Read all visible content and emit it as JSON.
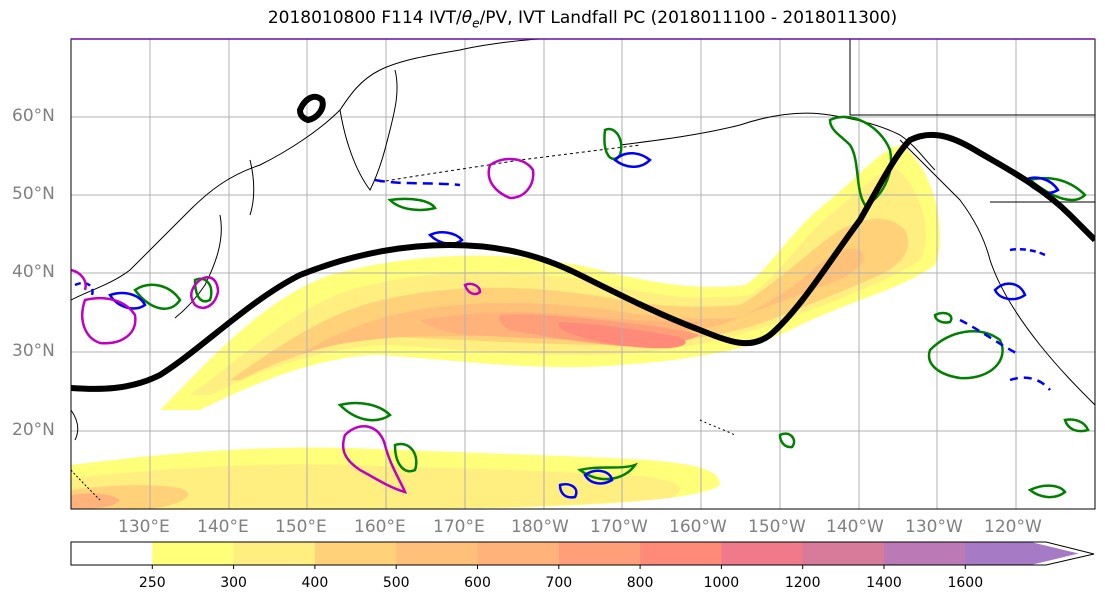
{
  "title": "2018010800 F114 IVT/θₑ/PV, IVT Landfall PC (2018011100 - 2018011300)",
  "title_parts": {
    "prefix": "2018010800 F114 IVT/",
    "theta": "θ",
    "theta_sub": "e",
    "suffix": "/PV, IVT Landfall PC (2018011100 - 2018011300)"
  },
  "lat_labels": [
    "60°N",
    "50°N",
    "40°N",
    "30°N",
    "20°N"
  ],
  "lon_labels": [
    "130°E",
    "140°E",
    "150°E",
    "160°E",
    "170°E",
    "180°W",
    "170°W",
    "160°W",
    "150°W",
    "140°W",
    "130°W",
    "120°W"
  ],
  "colorbar": {
    "ticks": [
      "250",
      "300",
      "400",
      "500",
      "600",
      "700",
      "800",
      "1000",
      "1200",
      "1400",
      "1600"
    ],
    "colors": [
      "#ffffff",
      "#ffff7a",
      "#ffee80",
      "#ffd27a",
      "#ffc07a",
      "#ffb37a",
      "#ff9f7a",
      "#ff8a7a",
      "#f07a8a",
      "#d87a9a",
      "#bb7ab5",
      "#a67ac5"
    ]
  },
  "chart_data": {
    "type": "map",
    "fields": [
      "IVT (shaded)",
      "θe (contours)",
      "PV (contours)",
      "IVT Landfall PC (thick black contour)"
    ],
    "extent": {
      "lon": [
        "120°E",
        "115°W"
      ],
      "lat": [
        "10°N",
        "70°N"
      ]
    },
    "ivt_levels": [
      250,
      300,
      400,
      500,
      600,
      700,
      800,
      1000,
      1200,
      1400,
      1600
    ],
    "colorbar_extend": "max",
    "contour_colors": {
      "landfall_pc": "#000000",
      "green": "#008000",
      "blue": "#0000ff",
      "magenta": "#c000c0"
    }
  }
}
